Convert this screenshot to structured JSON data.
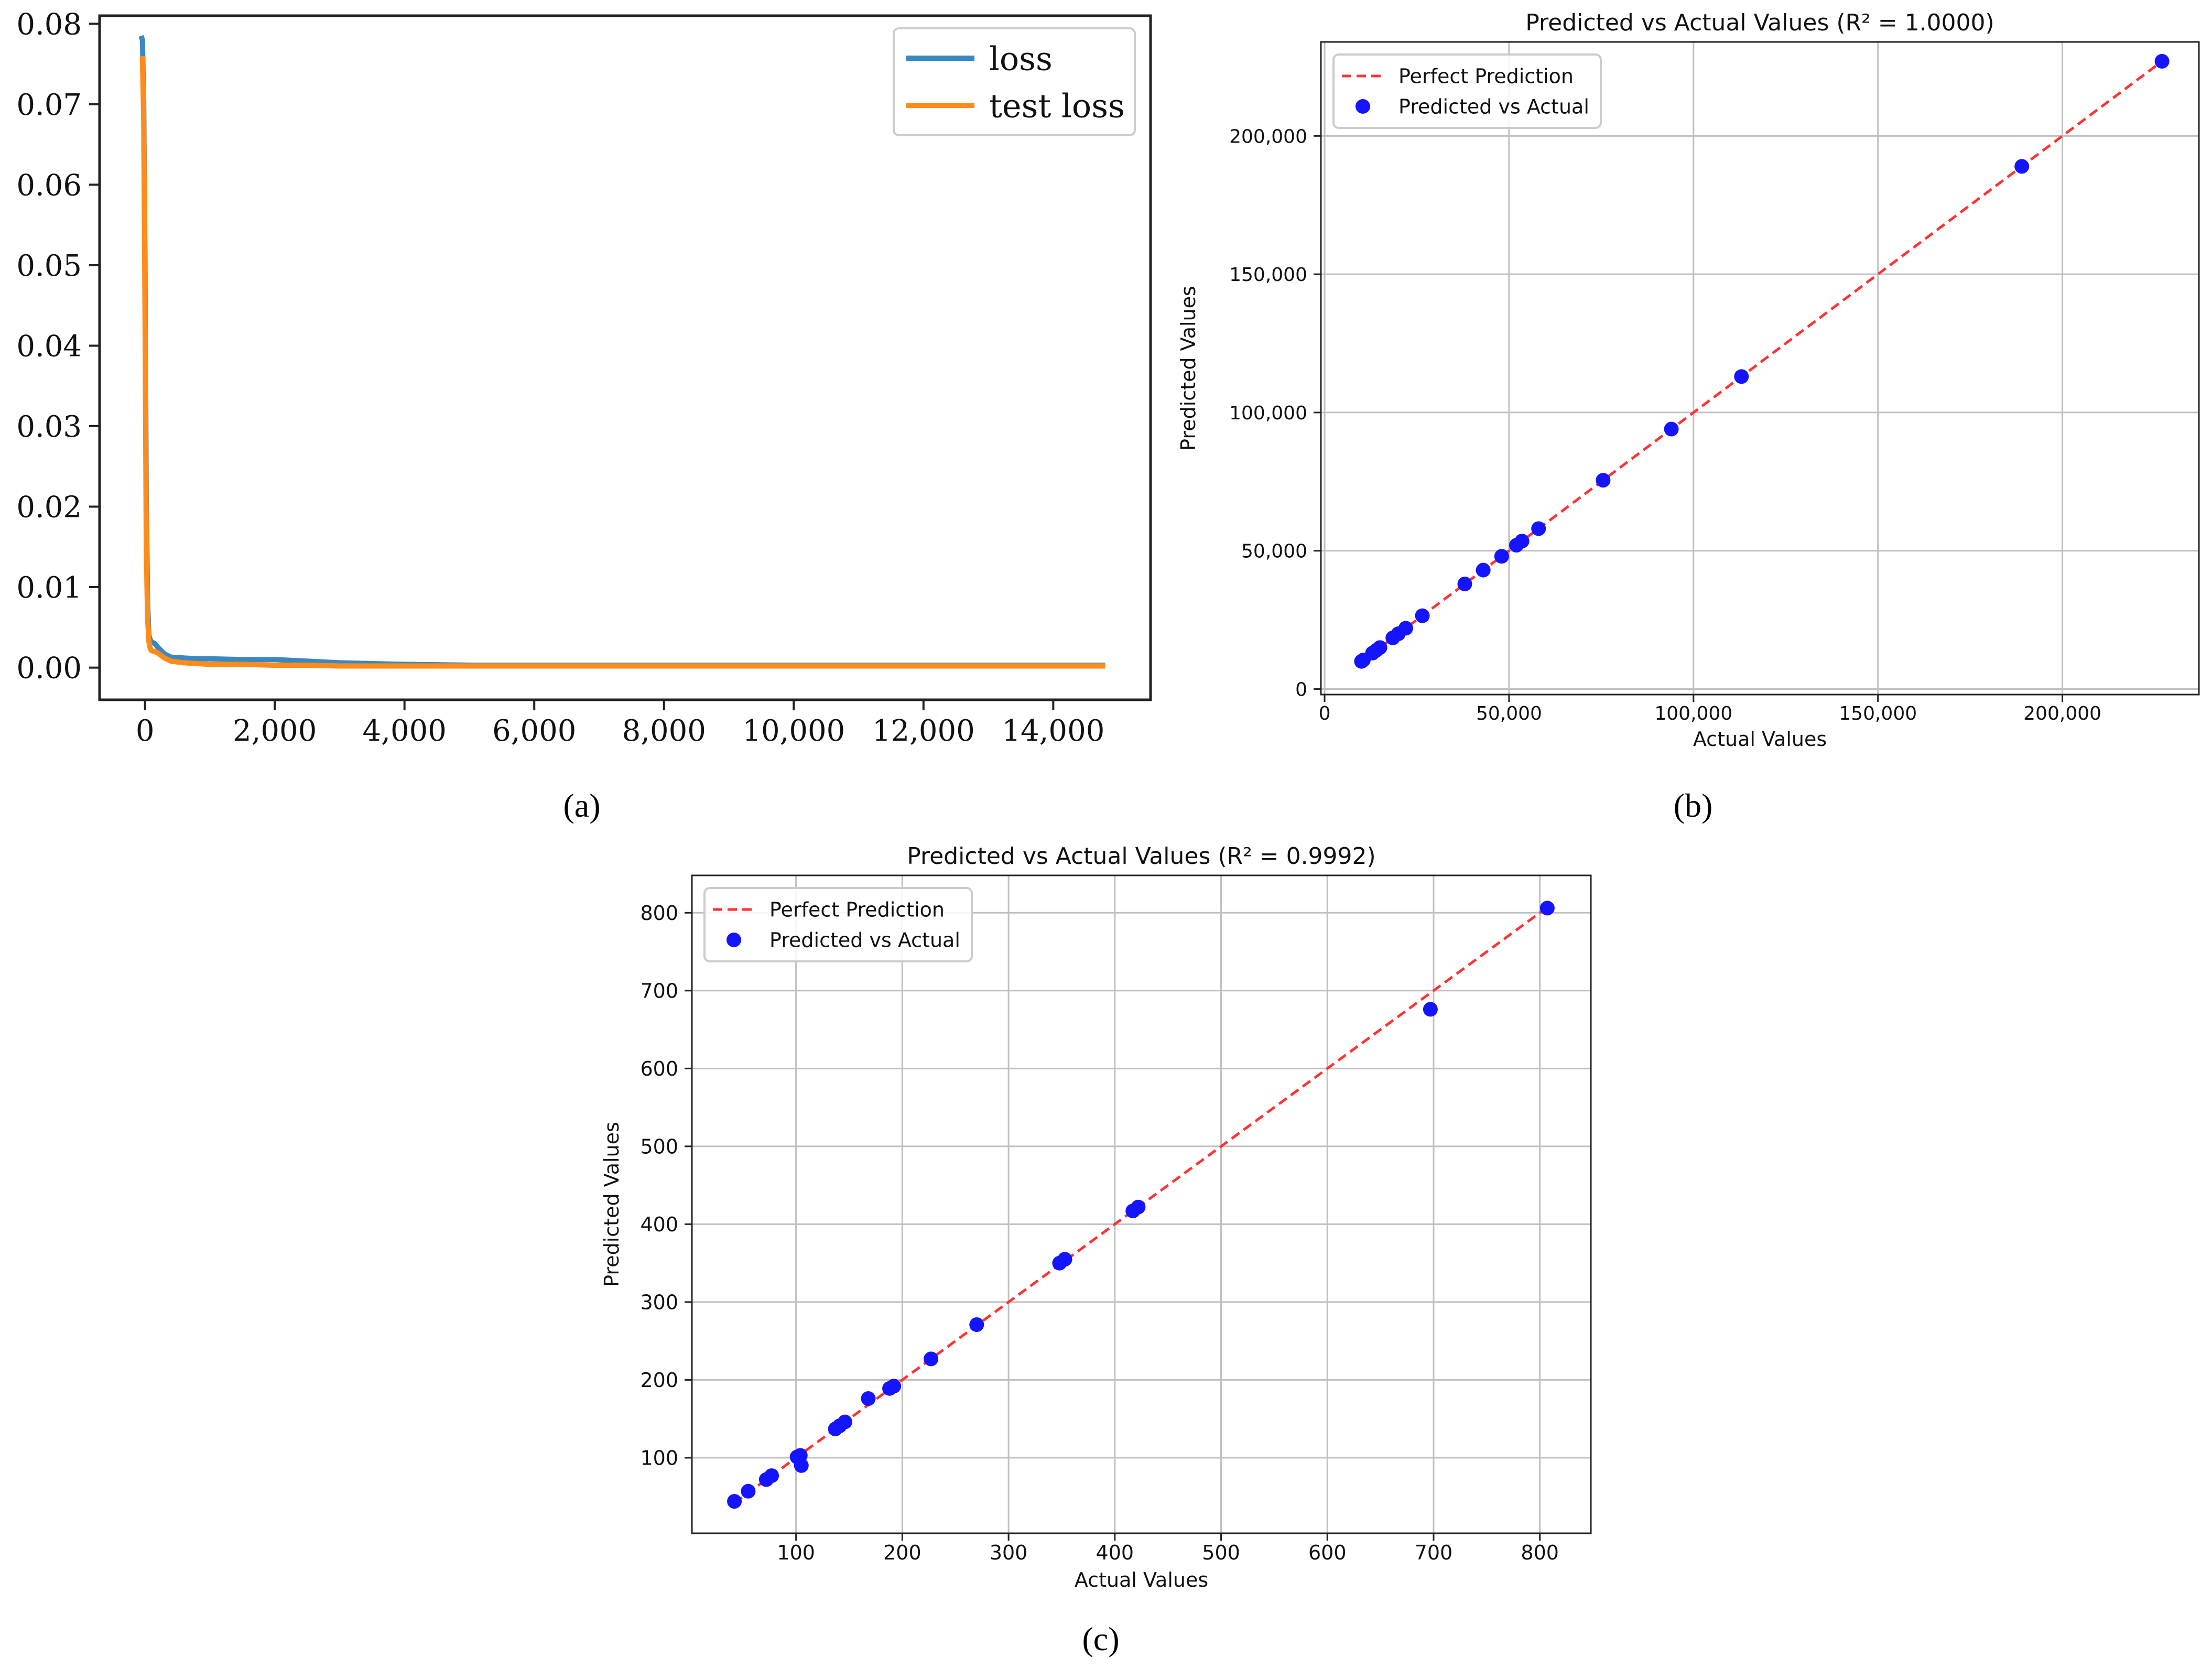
{
  "captions": {
    "a": "(a)",
    "b": "(b)",
    "c": "(c)"
  },
  "colors": {
    "loss": "#3a88c2",
    "test_loss": "#ff8c1a",
    "perfect_line": "#ff3333",
    "points": "#1414ff",
    "grid": "#c0c0c0",
    "axis": "#222222"
  },
  "chart_data": [
    {
      "type": "line",
      "title": "",
      "xlabel": "",
      "ylabel": "",
      "xlim": [
        -700,
        15500
      ],
      "ylim": [
        -0.004,
        0.081
      ],
      "xticks": [
        0,
        2000,
        4000,
        6000,
        8000,
        10000,
        12000,
        14000
      ],
      "xtick_labels": [
        "0",
        "2,000",
        "4,000",
        "6,000",
        "8,000",
        "10,000",
        "12,000",
        "14,000"
      ],
      "yticks": [
        0.0,
        0.01,
        0.02,
        0.03,
        0.04,
        0.05,
        0.06,
        0.07,
        0.08
      ],
      "ytick_labels": [
        "0.00",
        "0.01",
        "0.02",
        "0.03",
        "0.04",
        "0.05",
        "0.06",
        "0.07",
        "0.08"
      ],
      "grid": false,
      "legend": "top-right",
      "series": [
        {
          "name": "loss",
          "x": [
            -60,
            -40,
            -20,
            0,
            20,
            40,
            60,
            80,
            100,
            150,
            200,
            300,
            400,
            600,
            800,
            1000,
            1500,
            2000,
            2500,
            3000,
            4000,
            5000,
            6000,
            8000,
            10000,
            12000,
            14000,
            14800
          ],
          "y": [
            0.0785,
            0.078,
            0.07,
            0.05,
            0.02,
            0.008,
            0.004,
            0.0035,
            0.0032,
            0.003,
            0.0025,
            0.0017,
            0.0013,
            0.0012,
            0.0011,
            0.0011,
            0.001,
            0.001,
            0.0008,
            0.0006,
            0.0004,
            0.0003,
            0.0003,
            0.0003,
            0.0003,
            0.0003,
            0.0003,
            0.0003
          ]
        },
        {
          "name": "test loss",
          "x": [
            -40,
            -20,
            0,
            20,
            40,
            60,
            80,
            100,
            150,
            200,
            300,
            400,
            600,
            800,
            1000,
            1500,
            2000,
            2500,
            3000,
            4000,
            5000,
            6000,
            8000,
            10000,
            12000,
            14000,
            14800
          ],
          "y": [
            0.076,
            0.068,
            0.045,
            0.015,
            0.006,
            0.0032,
            0.0024,
            0.0021,
            0.002,
            0.0018,
            0.0012,
            0.0008,
            0.0006,
            0.0005,
            0.0004,
            0.0004,
            0.0003,
            0.0003,
            0.0002,
            0.0002,
            0.0002,
            0.0002,
            0.0002,
            0.0002,
            0.0002,
            0.0002,
            0.0002
          ]
        }
      ]
    },
    {
      "type": "scatter",
      "title": "Predicted vs Actual Values (R² = 1.0000)",
      "xlabel": "Actual Values",
      "ylabel": "Predicted Values",
      "xlim": [
        -1000,
        237000
      ],
      "ylim": [
        -2000,
        234000
      ],
      "xticks": [
        0,
        50000,
        100000,
        150000,
        200000
      ],
      "xtick_labels": [
        "0",
        "50,000",
        "100,000",
        "150,000",
        "200,000"
      ],
      "yticks": [
        0,
        50000,
        100000,
        150000,
        200000
      ],
      "ytick_labels": [
        "0",
        "50,000",
        "100,000",
        "150,000",
        "200,000"
      ],
      "grid": true,
      "legend": "top-left",
      "series": [
        {
          "name": "Perfect Prediction",
          "kind": "dashed-line",
          "x": [
            10000,
            227000
          ],
          "y": [
            10000,
            227000
          ]
        },
        {
          "name": "Predicted vs Actual",
          "kind": "points",
          "x": [
            10000,
            10500,
            13000,
            14000,
            15000,
            18500,
            20000,
            22000,
            26500,
            38000,
            43000,
            48000,
            52000,
            53500,
            58000,
            75500,
            94000,
            113000,
            189000,
            227000
          ],
          "y": [
            10000,
            10500,
            13000,
            14000,
            15000,
            18500,
            20000,
            22000,
            26500,
            38000,
            43000,
            48000,
            52000,
            53500,
            58000,
            75500,
            94000,
            113000,
            189000,
            227000
          ]
        }
      ]
    },
    {
      "type": "scatter",
      "title": "Predicted vs Actual Values (R² = 0.9992)",
      "xlabel": "Actual Values",
      "ylabel": "Predicted Values",
      "xlim": [
        2,
        848
      ],
      "ylim": [
        3,
        848
      ],
      "xticks": [
        100,
        200,
        300,
        400,
        500,
        600,
        700,
        800
      ],
      "xtick_labels": [
        "100",
        "200",
        "300",
        "400",
        "500",
        "600",
        "700",
        "800"
      ],
      "yticks": [
        100,
        200,
        300,
        400,
        500,
        600,
        700,
        800
      ],
      "ytick_labels": [
        "100",
        "200",
        "300",
        "400",
        "500",
        "600",
        "700",
        "800"
      ],
      "grid": true,
      "legend": "top-left",
      "series": [
        {
          "name": "Perfect Prediction",
          "kind": "dashed-line",
          "x": [
            42,
            806
          ],
          "y": [
            42,
            806
          ]
        },
        {
          "name": "Predicted vs Actual",
          "kind": "points",
          "x": [
            42,
            55,
            72,
            77,
            101,
            104,
            105,
            137,
            141,
            146,
            168,
            188,
            192,
            227,
            270,
            348,
            353,
            417,
            422,
            697,
            807
          ],
          "y": [
            44,
            57,
            72,
            77,
            101,
            103,
            90,
            137,
            141,
            146,
            176,
            189,
            192,
            227,
            271,
            350,
            355,
            417,
            422,
            676,
            806
          ]
        }
      ]
    }
  ]
}
